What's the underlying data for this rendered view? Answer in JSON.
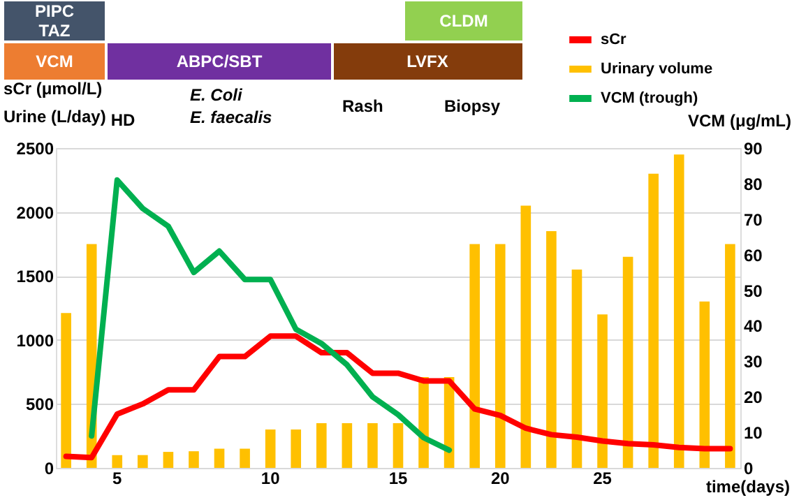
{
  "chart_data": {
    "type": "bar",
    "categories": [
      null,
      null,
      "5",
      null,
      null,
      null,
      null,
      null,
      "10",
      null,
      null,
      null,
      null,
      "15",
      null,
      null,
      null,
      "20",
      null,
      null,
      null,
      "25",
      null,
      null,
      null,
      null,
      null
    ],
    "series": [
      {
        "name": "sCr",
        "type": "line",
        "color": "#ff0000",
        "values": [
          90,
          80,
          420,
          500,
          610,
          610,
          870,
          870,
          1030,
          1030,
          900,
          900,
          740,
          740,
          680,
          680,
          460,
          410,
          310,
          260,
          240,
          210,
          190,
          180,
          160,
          150,
          150
        ]
      },
      {
        "name": "Urinary volume",
        "color": "#ffc000",
        "values": [
          1210,
          1750,
          100,
          100,
          125,
          130,
          150,
          150,
          300,
          300,
          350,
          350,
          350,
          350,
          710,
          710,
          1750,
          1750,
          2050,
          1850,
          1550,
          1200,
          1650,
          2300,
          2450,
          1300,
          1750
        ]
      },
      {
        "name": "VCM (trough)",
        "type": "line",
        "axis": "y2",
        "color": "#00b050",
        "values": [
          null,
          9,
          81,
          73,
          68,
          55,
          61,
          53,
          53,
          39,
          35,
          29,
          20,
          15,
          8.5,
          5,
          null,
          null,
          null,
          null,
          null,
          null,
          null,
          null,
          null,
          null,
          null
        ]
      }
    ],
    "ylabel": "sCr (μmol/L)\nUrine (L/day)",
    "y2label": "VCM (μg/mL)",
    "xlabel": "time(days)",
    "ylim": [
      0,
      2500
    ],
    "yticks": [
      0,
      500,
      1000,
      1500,
      2000,
      2500
    ],
    "y2lim": [
      0,
      90
    ],
    "y2ticks": [
      0,
      10,
      20,
      30,
      40,
      50,
      60,
      70,
      80,
      90
    ],
    "grid": "y",
    "legend": "top right",
    "annotations": [
      "PIPC\nTAZ",
      "VCM",
      "ABPC/SBT",
      "LVFX",
      "CLDM",
      "HD",
      "E. Coli\nE. faecalis",
      "Rash",
      "Biopsy"
    ]
  }
}
